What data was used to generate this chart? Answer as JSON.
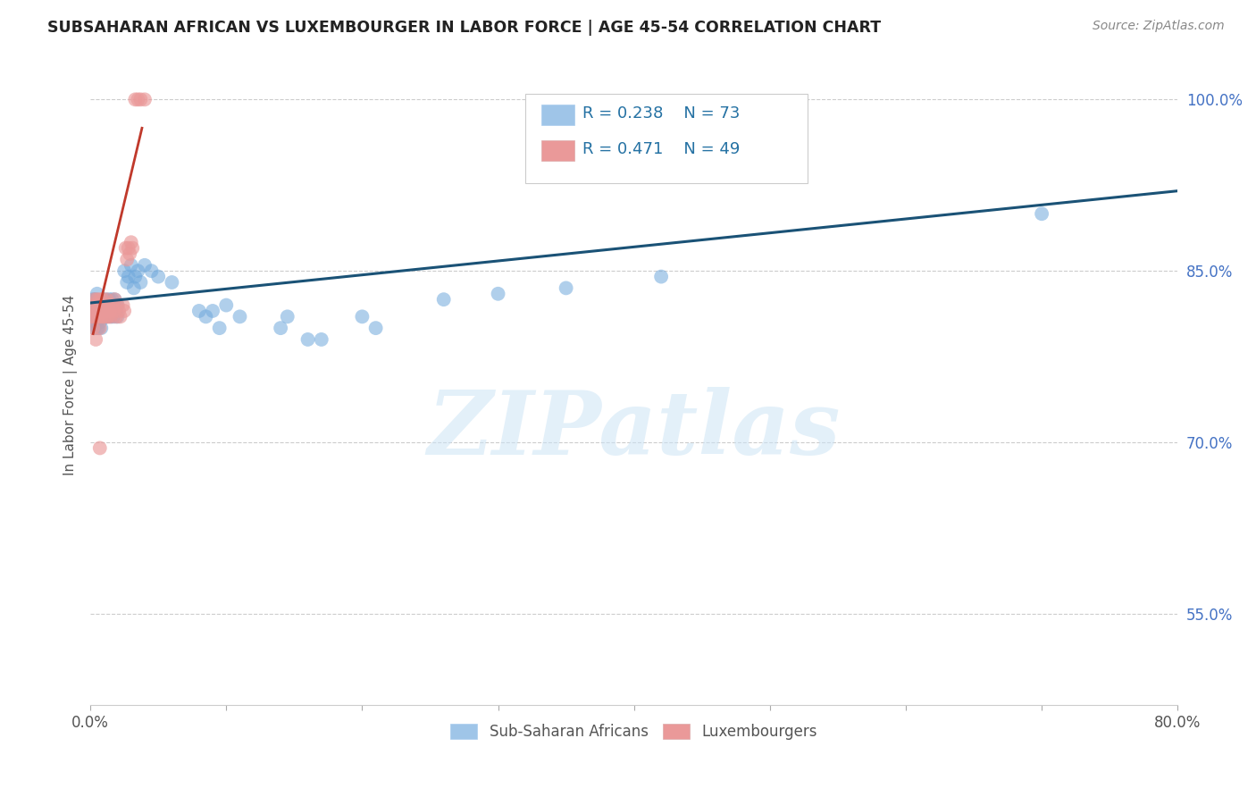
{
  "title": "SUBSAHARAN AFRICAN VS LUXEMBOURGER IN LABOR FORCE | AGE 45-54 CORRELATION CHART",
  "source_text": "Source: ZipAtlas.com",
  "ylabel": "In Labor Force | Age 45-54",
  "xlim": [
    0.0,
    0.8
  ],
  "ylim": [
    0.47,
    1.03
  ],
  "xtick_positions": [
    0.0,
    0.1,
    0.2,
    0.3,
    0.4,
    0.5,
    0.6,
    0.7,
    0.8
  ],
  "xticklabels": [
    "0.0%",
    "",
    "",
    "",
    "",
    "",
    "",
    "",
    "80.0%"
  ],
  "ytick_positions": [
    1.0,
    0.85,
    0.7,
    0.55
  ],
  "ytick_labels": [
    "100.0%",
    "85.0%",
    "70.0%",
    "55.0%"
  ],
  "blue_color": "#6fa8dc",
  "pink_color": "#ea9999",
  "blue_line_color": "#1a5276",
  "pink_line_color": "#c0392b",
  "legend_blue_color": "#9fc5e8",
  "legend_pink_color": "#ea9999",
  "R_blue": 0.238,
  "N_blue": 73,
  "R_pink": 0.471,
  "N_pink": 49,
  "watermark": "ZIPatlas",
  "blue_scatter": [
    [
      0.001,
      0.82
    ],
    [
      0.002,
      0.825
    ],
    [
      0.002,
      0.81
    ],
    [
      0.003,
      0.815
    ],
    [
      0.003,
      0.8
    ],
    [
      0.003,
      0.82
    ],
    [
      0.004,
      0.805
    ],
    [
      0.004,
      0.815
    ],
    [
      0.004,
      0.825
    ],
    [
      0.005,
      0.8
    ],
    [
      0.005,
      0.81
    ],
    [
      0.005,
      0.83
    ],
    [
      0.006,
      0.815
    ],
    [
      0.006,
      0.82
    ],
    [
      0.006,
      0.8
    ],
    [
      0.007,
      0.805
    ],
    [
      0.007,
      0.81
    ],
    [
      0.008,
      0.815
    ],
    [
      0.008,
      0.8
    ],
    [
      0.008,
      0.82
    ],
    [
      0.009,
      0.815
    ],
    [
      0.009,
      0.81
    ],
    [
      0.01,
      0.82
    ],
    [
      0.01,
      0.815
    ],
    [
      0.011,
      0.825
    ],
    [
      0.011,
      0.81
    ],
    [
      0.012,
      0.82
    ],
    [
      0.012,
      0.815
    ],
    [
      0.013,
      0.81
    ],
    [
      0.013,
      0.82
    ],
    [
      0.014,
      0.815
    ],
    [
      0.014,
      0.825
    ],
    [
      0.015,
      0.81
    ],
    [
      0.015,
      0.82
    ],
    [
      0.016,
      0.825
    ],
    [
      0.016,
      0.815
    ],
    [
      0.017,
      0.81
    ],
    [
      0.017,
      0.82
    ],
    [
      0.018,
      0.815
    ],
    [
      0.018,
      0.825
    ],
    [
      0.019,
      0.82
    ],
    [
      0.019,
      0.815
    ],
    [
      0.02,
      0.81
    ],
    [
      0.02,
      0.82
    ],
    [
      0.025,
      0.85
    ],
    [
      0.027,
      0.84
    ],
    [
      0.028,
      0.845
    ],
    [
      0.03,
      0.855
    ],
    [
      0.032,
      0.835
    ],
    [
      0.033,
      0.845
    ],
    [
      0.035,
      0.85
    ],
    [
      0.037,
      0.84
    ],
    [
      0.04,
      0.855
    ],
    [
      0.045,
      0.85
    ],
    [
      0.05,
      0.845
    ],
    [
      0.06,
      0.84
    ],
    [
      0.08,
      0.815
    ],
    [
      0.085,
      0.81
    ],
    [
      0.09,
      0.815
    ],
    [
      0.095,
      0.8
    ],
    [
      0.1,
      0.82
    ],
    [
      0.11,
      0.81
    ],
    [
      0.14,
      0.8
    ],
    [
      0.145,
      0.81
    ],
    [
      0.16,
      0.79
    ],
    [
      0.17,
      0.79
    ],
    [
      0.2,
      0.81
    ],
    [
      0.21,
      0.8
    ],
    [
      0.26,
      0.825
    ],
    [
      0.3,
      0.83
    ],
    [
      0.35,
      0.835
    ],
    [
      0.42,
      0.845
    ],
    [
      0.7,
      0.9
    ]
  ],
  "pink_scatter": [
    [
      0.001,
      0.81
    ],
    [
      0.002,
      0.8
    ],
    [
      0.002,
      0.82
    ],
    [
      0.003,
      0.825
    ],
    [
      0.003,
      0.81
    ],
    [
      0.004,
      0.79
    ],
    [
      0.004,
      0.82
    ],
    [
      0.004,
      0.815
    ],
    [
      0.005,
      0.81
    ],
    [
      0.005,
      0.825
    ],
    [
      0.005,
      0.815
    ],
    [
      0.006,
      0.82
    ],
    [
      0.006,
      0.81
    ],
    [
      0.007,
      0.825
    ],
    [
      0.007,
      0.815
    ],
    [
      0.007,
      0.8
    ],
    [
      0.008,
      0.82
    ],
    [
      0.008,
      0.81
    ],
    [
      0.009,
      0.825
    ],
    [
      0.009,
      0.815
    ],
    [
      0.01,
      0.82
    ],
    [
      0.01,
      0.81
    ],
    [
      0.011,
      0.815
    ],
    [
      0.012,
      0.81
    ],
    [
      0.012,
      0.825
    ],
    [
      0.013,
      0.82
    ],
    [
      0.013,
      0.81
    ],
    [
      0.014,
      0.815
    ],
    [
      0.015,
      0.81
    ],
    [
      0.016,
      0.82
    ],
    [
      0.017,
      0.815
    ],
    [
      0.018,
      0.825
    ],
    [
      0.019,
      0.81
    ],
    [
      0.02,
      0.82
    ],
    [
      0.021,
      0.815
    ],
    [
      0.022,
      0.81
    ],
    [
      0.024,
      0.82
    ],
    [
      0.025,
      0.815
    ],
    [
      0.026,
      0.87
    ],
    [
      0.027,
      0.86
    ],
    [
      0.028,
      0.87
    ],
    [
      0.029,
      0.865
    ],
    [
      0.03,
      0.875
    ],
    [
      0.031,
      0.87
    ],
    [
      0.033,
      1.0
    ],
    [
      0.035,
      1.0
    ],
    [
      0.037,
      1.0
    ],
    [
      0.04,
      1.0
    ],
    [
      0.007,
      0.695
    ]
  ]
}
